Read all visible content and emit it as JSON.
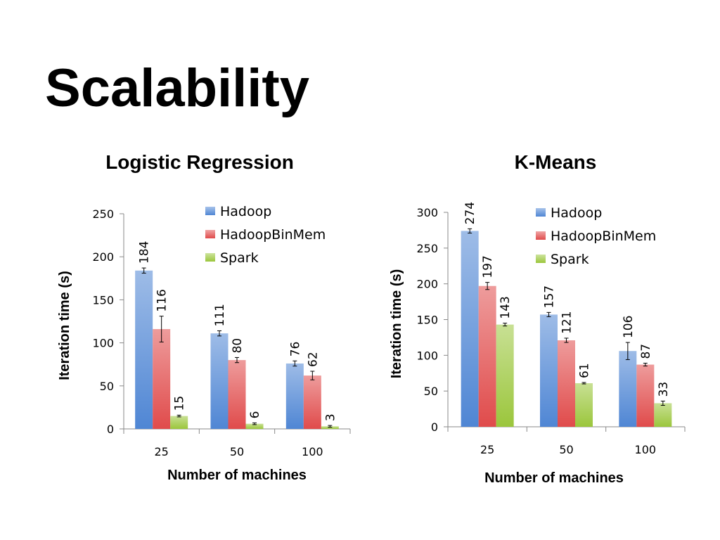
{
  "slide": {
    "title": "Scalability"
  },
  "colors": {
    "Hadoop": "#4f86d4",
    "HadoopBinMem": "#e04b4b",
    "Spark": "#9bc63c",
    "axis": "#888888"
  },
  "chart_data": [
    {
      "type": "bar",
      "title": "Logistic Regression",
      "xlabel": "Number of machines",
      "ylabel": "Iteration time (s)",
      "categories": [
        "25",
        "50",
        "100"
      ],
      "ylim": [
        0,
        250
      ],
      "yticks": [
        0,
        50,
        100,
        150,
        200,
        250
      ],
      "legend_position": "top-right",
      "grid": false,
      "series": [
        {
          "name": "Hadoop",
          "values": [
            184,
            111,
            76
          ],
          "errors": [
            3,
            3,
            3
          ]
        },
        {
          "name": "HadoopBinMem",
          "values": [
            116,
            80,
            62
          ],
          "errors": [
            15,
            3,
            5
          ]
        },
        {
          "name": "Spark",
          "values": [
            15,
            6,
            3
          ],
          "errors": [
            1,
            1,
            1
          ]
        }
      ]
    },
    {
      "type": "bar",
      "title": "K-Means",
      "xlabel": "Number of machines",
      "ylabel": "Iteration time (s)",
      "categories": [
        "25",
        "50",
        "100"
      ],
      "ylim": [
        0,
        300
      ],
      "yticks": [
        0,
        50,
        100,
        150,
        200,
        250,
        300
      ],
      "legend_position": "top-right",
      "grid": false,
      "series": [
        {
          "name": "Hadoop",
          "values": [
            274,
            157,
            106
          ],
          "errors": [
            3,
            3,
            12
          ]
        },
        {
          "name": "HadoopBinMem",
          "values": [
            197,
            121,
            87
          ],
          "errors": [
            5,
            3,
            2
          ]
        },
        {
          "name": "Spark",
          "values": [
            143,
            61,
            33
          ],
          "errors": [
            2,
            1,
            3
          ]
        }
      ]
    }
  ]
}
